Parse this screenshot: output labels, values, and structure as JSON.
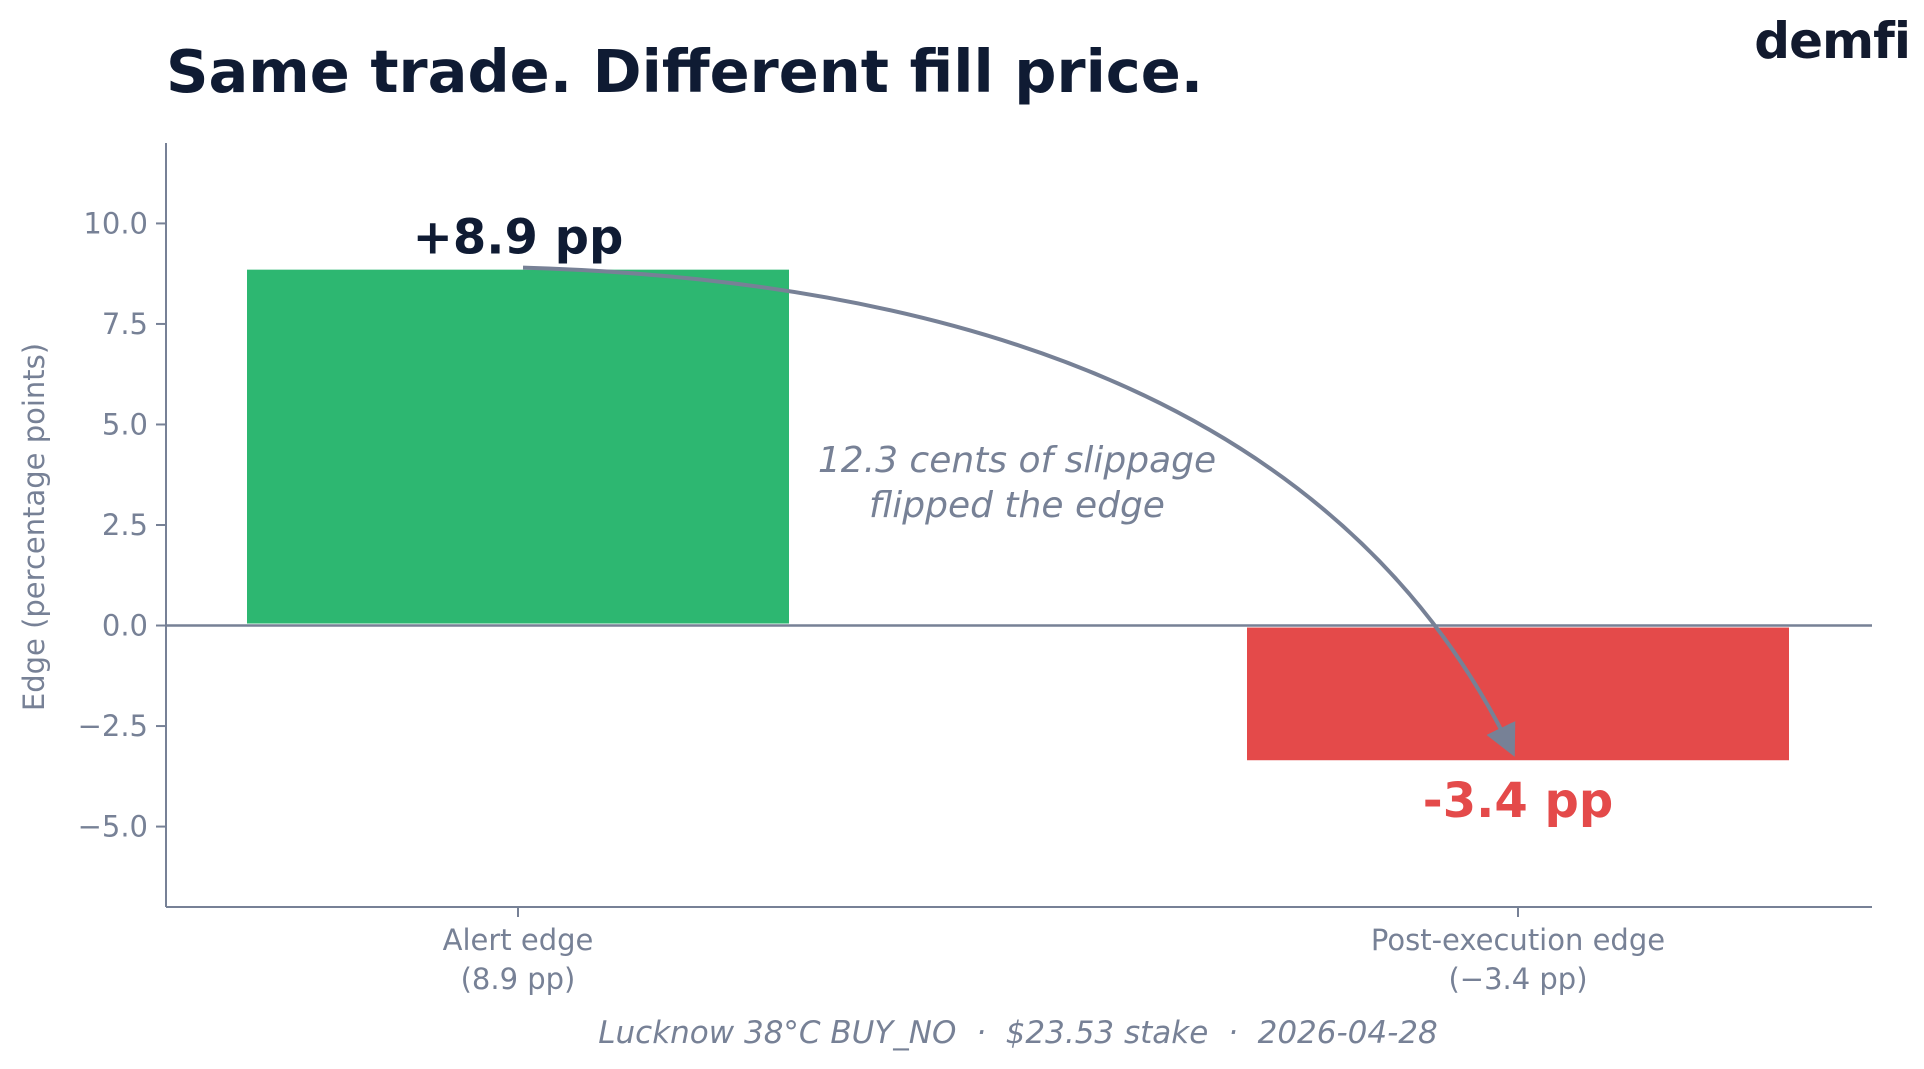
{
  "title": "Same trade. Different fill price.",
  "brand": "demfi",
  "footer": "Lucknow 38°C BUY_NO  ·  $23.53 stake  ·  2026-04-28",
  "colors": {
    "positive": "#2db771",
    "negative": "#e44a4a",
    "title": "#0f1b33",
    "muted": "#778196"
  },
  "chart_data": {
    "type": "bar",
    "categories": [
      "Alert edge\n(8.9 pp)",
      "Post-execution edge\n(−3.4 pp)"
    ],
    "values": [
      8.9,
      -3.4
    ],
    "data_labels": [
      "+8.9 pp",
      "-3.4 pp"
    ],
    "ylabel": "Edge (percentage points)",
    "ylim": [
      -7,
      12
    ],
    "yticks": [
      -5.0,
      -2.5,
      0.0,
      2.5,
      5.0,
      7.5,
      10.0
    ],
    "ytick_labels": [
      "−5.0",
      "−2.5",
      "0.0",
      "2.5",
      "5.0",
      "7.5",
      "10.0"
    ],
    "zero_line": true,
    "grid": false,
    "annotation": {
      "lines": [
        "12.3 cents of slippage",
        "flipped the edge"
      ],
      "arrow_from": [
        0,
        8.9
      ],
      "arrow_to": [
        1,
        -3.3
      ]
    }
  }
}
